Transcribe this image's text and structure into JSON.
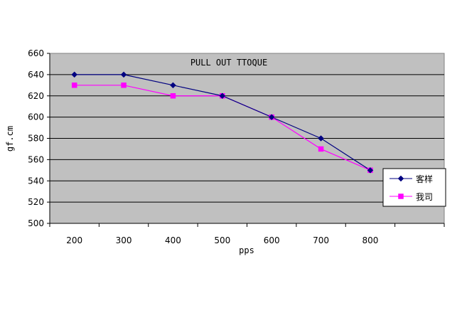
{
  "chart_data": {
    "type": "line",
    "title": "PULL OUT TTOQUE",
    "xlabel": "pps",
    "ylabel": "gf.cm",
    "categories": [
      "200",
      "300",
      "400",
      "500",
      "600",
      "700",
      "800"
    ],
    "extra_x_slots": 1,
    "ylim": [
      500,
      660
    ],
    "ystep": 20,
    "yticks": [
      "500",
      "520",
      "540",
      "560",
      "580",
      "600",
      "620",
      "640",
      "660"
    ],
    "grid": true,
    "legend_position": "right",
    "plot_background": "#c0c0c0",
    "series": [
      {
        "name": "客样",
        "color": "#000080",
        "marker": "diamond",
        "values": [
          640,
          640,
          630,
          620,
          600,
          580,
          550
        ]
      },
      {
        "name": "我司",
        "color": "#ff00ff",
        "marker": "square",
        "values": [
          630,
          630,
          620,
          620,
          600,
          570,
          550
        ]
      }
    ]
  }
}
